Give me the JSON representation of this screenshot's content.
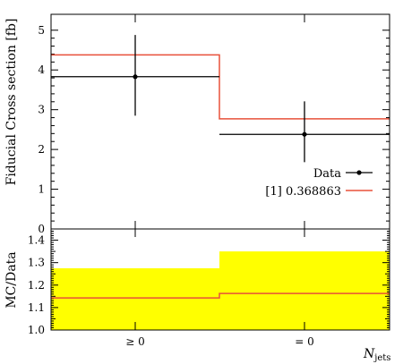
{
  "chart_data": [
    {
      "type": "line",
      "panel": "main",
      "xlabel": "",
      "ylabel": "Fiducial Cross section [fb]",
      "categories": [
        "≥ 0",
        "= 0"
      ],
      "ylim": [
        0,
        5.4
      ],
      "yticks": [
        "0",
        "1",
        "2",
        "3",
        "4",
        "5"
      ],
      "series": [
        {
          "name": "Data",
          "style": "points-with-errors",
          "color": "#000000",
          "values": [
            3.83,
            2.38
          ],
          "err_low": [
            0.98,
            0.7
          ],
          "err_high": [
            1.05,
            0.83
          ]
        },
        {
          "name": "[1] 0.368863",
          "style": "step",
          "color": "#e8503a",
          "values": [
            4.38,
            2.77
          ]
        }
      ],
      "legend_position": "bottom-right"
    },
    {
      "type": "area",
      "panel": "ratio",
      "xlabel": "N_jets",
      "ylabel": "MC/Data",
      "categories": [
        "≥ 0",
        "= 0"
      ],
      "ylim": [
        1.0,
        1.45
      ],
      "yticks": [
        "1.0",
        "1.1",
        "1.2",
        "1.3",
        "1.4"
      ],
      "series": [
        {
          "name": "Data uncertainty band",
          "style": "band",
          "color": "#ffff00",
          "low": [
            1.0,
            1.0
          ],
          "high": [
            1.275,
            1.35
          ]
        },
        {
          "name": "MC/Data ratio",
          "style": "step",
          "color": "#e8503a",
          "values": [
            1.143,
            1.163
          ]
        }
      ]
    }
  ],
  "axes": {
    "main_ylabel": "Fiducial Cross section [fb]",
    "ratio_ylabel": "MC/Data",
    "xlabel_main": "N",
    "xlabel_sub": "jets"
  },
  "legend": {
    "data_label": "Data",
    "mc_label": "[1] 0.368863"
  },
  "colors": {
    "data": "#000000",
    "mc": "#e8503a",
    "band": "#ffff00"
  }
}
